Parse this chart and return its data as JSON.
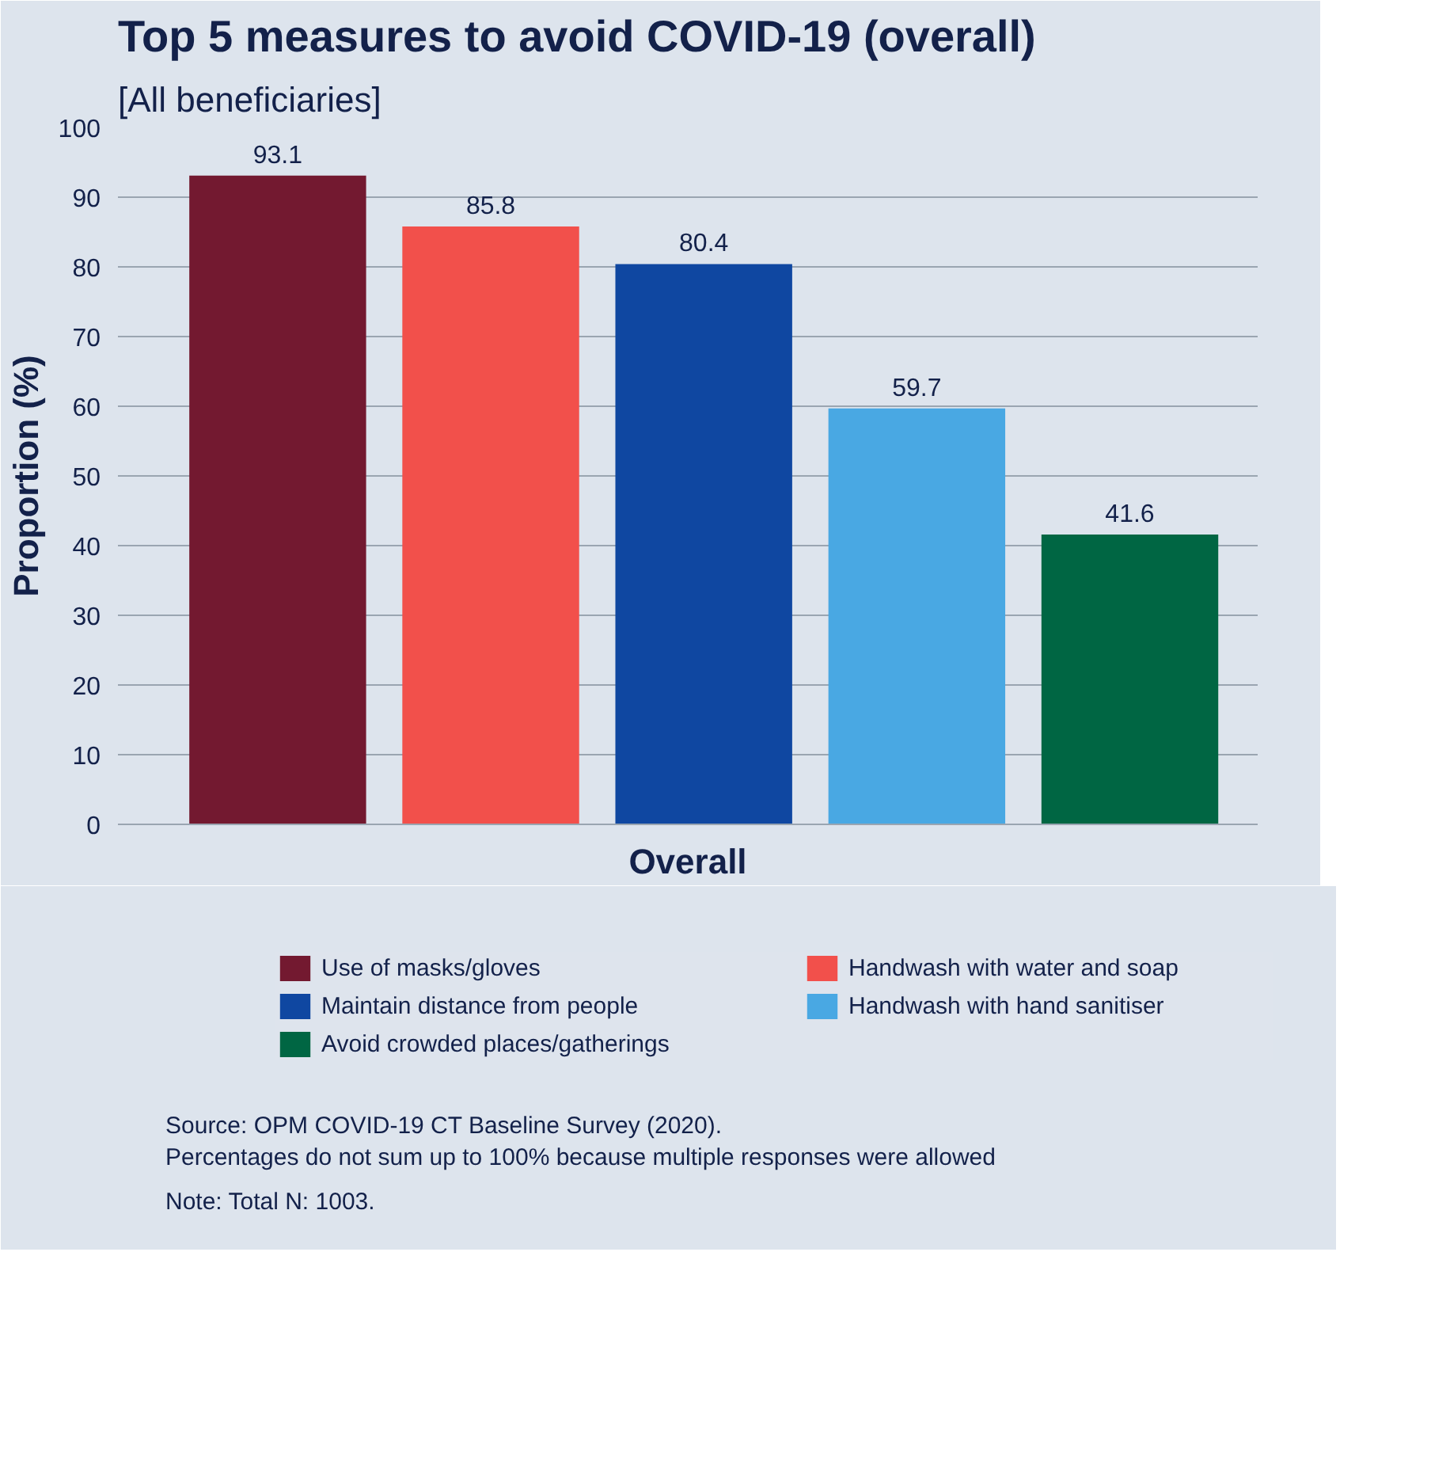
{
  "chart_data": {
    "type": "bar",
    "title": "Top 5 measures to avoid COVID-19 (overall)",
    "subtitle": "[All beneficiaries]",
    "categories": [
      null
    ],
    "xlabel": "Overall",
    "ylabel": "Proportion (%)",
    "series": [
      {
        "name": "Use of masks/gloves",
        "color": "#731930",
        "values": [
          93.1
        ]
      },
      {
        "name": "Handwash with water and soap",
        "color": "#f2504b",
        "values": [
          85.8
        ]
      },
      {
        "name": "Maintain distance from people",
        "color": "#0f47a1",
        "values": [
          80.4
        ]
      },
      {
        "name": "Handwash with hand sanitiser",
        "color": "#49a8e3",
        "values": [
          59.7
        ]
      },
      {
        "name": "Avoid crowded places/gatherings",
        "color": "#006643",
        "values": [
          41.6
        ]
      }
    ],
    "ylim": [
      0,
      100
    ],
    "yticks": [
      0,
      10,
      20,
      30,
      40,
      50,
      60,
      70,
      80,
      90,
      100
    ],
    "grid": "y",
    "legend": "bottom",
    "data_labels": true,
    "annotations": [
      "Source: OPM COVID-19 CT Baseline Survey (2020).",
      "Percentages do not sum up to 100% because multiple responses were allowed",
      "Note: Total N: 1003."
    ]
  }
}
